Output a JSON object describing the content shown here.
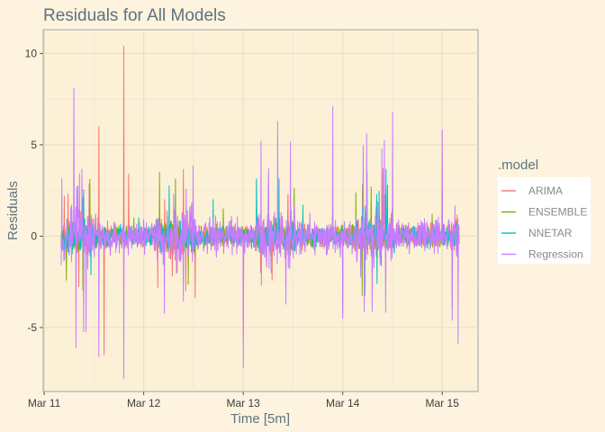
{
  "chart_data": {
    "type": "line",
    "title": "Residuals for All Models",
    "xlabel": "Time [5m]",
    "ylabel": "Residuals",
    "x_tick_labels": [
      "Mar 11",
      "Mar 12",
      "Mar 13",
      "Mar 14",
      "Mar 15"
    ],
    "x_tick_values": [
      0,
      1,
      2,
      3,
      4
    ],
    "xlim": [
      -0.01,
      4.36
    ],
    "y_ticks": [
      -5,
      0,
      5,
      10
    ],
    "ylim": [
      -8.5,
      11.3
    ],
    "x_start": 0.17,
    "x_end": 4.17,
    "grid": true,
    "legend": {
      "title": ".model",
      "position": "right",
      "entries": [
        "ARIMA",
        "ENSEMBLE",
        "NNETAR",
        "Regression"
      ]
    },
    "series": [
      {
        "name": "ARIMA",
        "color": "#f8766d",
        "points": [
          [
            0.2,
            2.2
          ],
          [
            0.55,
            6.0
          ],
          [
            0.6,
            -6.5
          ],
          [
            0.8,
            10.4
          ],
          [
            0.85,
            3.4
          ],
          [
            2.0,
            3.4
          ],
          [
            2.0,
            -5.5
          ],
          [
            3.0,
            4.5
          ],
          [
            3.0,
            -4.3
          ],
          [
            4.0,
            5.8
          ],
          [
            4.1,
            -4.0
          ]
        ]
      },
      {
        "name": "ENSEMBLE",
        "color": "#7cae00",
        "points": [
          [
            0.9,
            1.0
          ],
          [
            1.8,
            1.5
          ],
          [
            2.9,
            1.7
          ],
          [
            3.2,
            2.8
          ],
          [
            3.9,
            1.2
          ]
        ]
      },
      {
        "name": "NNETAR",
        "color": "#00bfc4",
        "points": [
          [
            0.95,
            1.0
          ],
          [
            1.7,
            2.0
          ],
          [
            2.6,
            1.7
          ],
          [
            3.45,
            2.8
          ],
          [
            4.0,
            1.5
          ]
        ]
      },
      {
        "name": "Regression",
        "color": "#c77cff",
        "points": [
          [
            0.3,
            8.1
          ],
          [
            0.55,
            -6.6
          ],
          [
            0.8,
            10.5
          ],
          [
            0.8,
            -7.8
          ],
          [
            2.0,
            5.1
          ],
          [
            2.0,
            -7.2
          ],
          [
            2.9,
            7.1
          ],
          [
            3.0,
            -4.5
          ],
          [
            3.5,
            6.8
          ],
          [
            4.0,
            5.8
          ],
          [
            4.1,
            -4.6
          ]
        ]
      }
    ]
  }
}
